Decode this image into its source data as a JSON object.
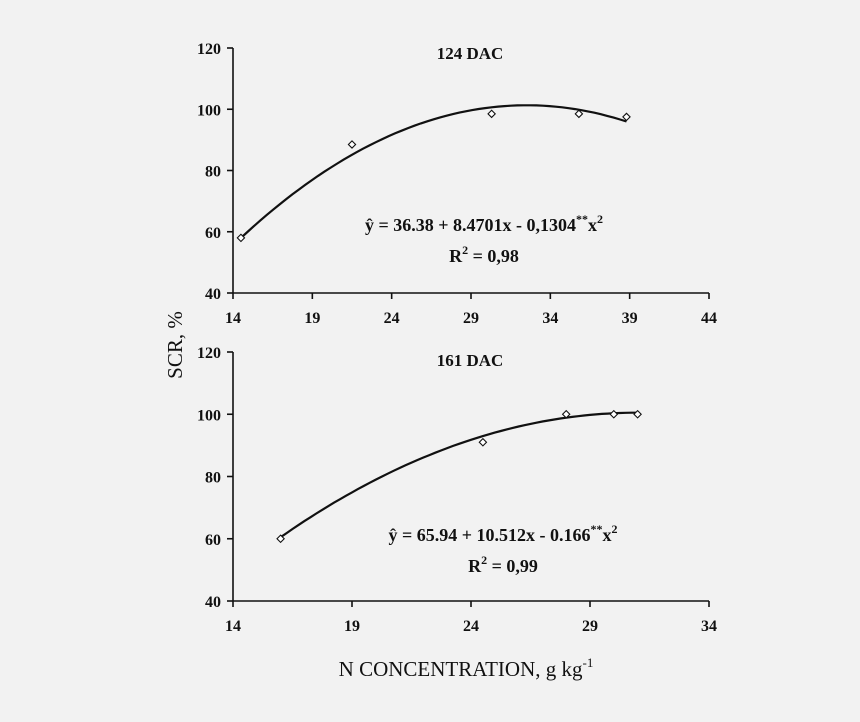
{
  "ylabel": "SCR, %",
  "xlabel": "N CONCENTRATION, g kg",
  "xlabel_sup": "-1",
  "chart_data": [
    {
      "type": "scatter",
      "title": "124 DAC",
      "xlim": [
        14,
        44
      ],
      "ylim": [
        40,
        120
      ],
      "xticks": [
        14,
        19,
        24,
        29,
        34,
        39,
        44
      ],
      "yticks": [
        40,
        60,
        80,
        100,
        120
      ],
      "x": [
        14.5,
        21.5,
        30.3,
        35.8,
        38.8
      ],
      "y": [
        58,
        88.5,
        98.5,
        98.5,
        97.5
      ],
      "fit": {
        "type": "quadratic",
        "x_from": 14.5,
        "x_to": 38.8,
        "y_from": 58,
        "y_peak": 101.3,
        "x_peak": 32.5,
        "y_to": 96.3
      },
      "equation": {
        "lhs": "ŷ",
        "rhs": " = 36.38 + 8.4701x - 0,1304",
        "sup": "**",
        "tail": "x",
        "tail_sup": "2"
      },
      "r2": {
        "base": "R",
        "sup": "2",
        "rest": " = 0,98"
      }
    },
    {
      "type": "scatter",
      "title": "161 DAC",
      "xlim": [
        14,
        34
      ],
      "ylim": [
        40,
        120
      ],
      "xticks": [
        14,
        19,
        24,
        29,
        34
      ],
      "yticks": [
        40,
        60,
        80,
        100,
        120
      ],
      "x": [
        16.0,
        24.5,
        28.0,
        30.0,
        31.0
      ],
      "y": [
        60,
        91,
        100,
        100,
        100
      ],
      "fit": {
        "type": "quadratic",
        "x_from": 16.0,
        "x_to": 31.0,
        "y_from": 60.5,
        "y_peak": 100.5,
        "x_peak": 31.0,
        "y_to": 100.5
      },
      "equation": {
        "lhs": "ŷ",
        "rhs": " = 65.94 + 10.512x - 0.166",
        "sup": "**",
        "tail": "x",
        "tail_sup": "2"
      },
      "r2": {
        "base": "R",
        "sup": "2",
        "rest": " = 0,99"
      }
    }
  ]
}
